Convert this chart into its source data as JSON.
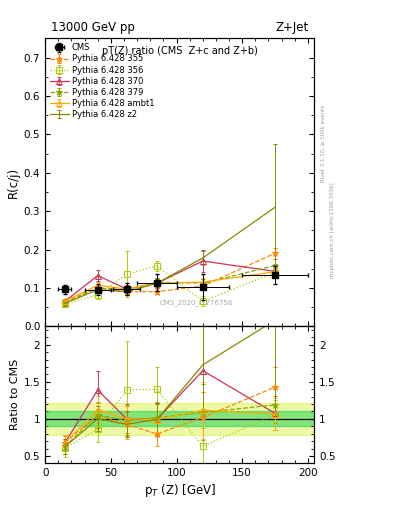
{
  "title_left": "13000 GeV pp",
  "title_right": "Z+Jet",
  "main_title": "pT(Z) ratio (CMS  Z+c and Z+b)",
  "ylabel_main": "R(c/j)",
  "ylabel_ratio": "Ratio to CMS",
  "xlabel": "p$_T$ (Z) [GeV]",
  "watermark": "CMS_2020_I1776758",
  "rivet_text": "Rivet 3.1.10, ≥ 100k events",
  "mcplots_text": "mcplots.cern.ch [arXiv:1306.3436]",
  "cms_x": [
    15,
    40,
    62,
    85,
    120,
    175
  ],
  "cms_y": [
    0.096,
    0.095,
    0.097,
    0.113,
    0.103,
    0.133
  ],
  "cms_yerr": [
    0.012,
    0.014,
    0.016,
    0.022,
    0.034,
    0.023
  ],
  "cms_xerr": [
    5,
    10,
    10,
    15,
    20,
    25
  ],
  "p355_x": [
    15,
    40,
    62,
    85,
    120,
    175
  ],
  "p355_y": [
    0.065,
    0.1,
    0.09,
    0.09,
    0.105,
    0.19
  ],
  "p355_yerr": [
    0.004,
    0.006,
    0.006,
    0.007,
    0.01,
    0.015
  ],
  "p355_color": "#ff8800",
  "p355_label": "Pythia 6.428 355",
  "p355_ls": "--",
  "p355_marker": "*",
  "p356_x": [
    15,
    40,
    62,
    85,
    120,
    175
  ],
  "p356_y": [
    0.058,
    0.082,
    0.135,
    0.158,
    0.065,
    0.14
  ],
  "p356_yerr": [
    0.008,
    0.012,
    0.06,
    0.013,
    0.013,
    0.012
  ],
  "p356_color": "#aacc00",
  "p356_label": "Pythia 6.428 356",
  "p356_ls": ":",
  "p356_marker": "s",
  "p370_x": [
    15,
    40,
    62,
    85,
    120,
    175
  ],
  "p370_y": [
    0.065,
    0.132,
    0.097,
    0.112,
    0.17,
    0.143
  ],
  "p370_yerr": [
    0.007,
    0.014,
    0.01,
    0.013,
    0.028,
    0.018
  ],
  "p370_color": "#cc3355",
  "p370_label": "Pythia 6.428 370",
  "p370_ls": "-",
  "p370_marker": "^",
  "p379_x": [
    15,
    40,
    62,
    85,
    120,
    175
  ],
  "p379_y": [
    0.06,
    0.1,
    0.095,
    0.115,
    0.112,
    0.158
  ],
  "p379_yerr": [
    0.006,
    0.008,
    0.01,
    0.01,
    0.012,
    0.018
  ],
  "p379_color": "#88aa00",
  "p379_label": "Pythia 6.428 379",
  "p379_ls": "--",
  "p379_marker": "*",
  "pambt_x": [
    15,
    40,
    62,
    85,
    120,
    175
  ],
  "pambt_y": [
    0.065,
    0.107,
    0.097,
    0.112,
    0.115,
    0.142
  ],
  "pambt_yerr": [
    0.005,
    0.008,
    0.008,
    0.01,
    0.012,
    0.016
  ],
  "pambt_color": "#ffaa00",
  "pambt_label": "Pythia 6.428 ambt1",
  "pambt_ls": "-",
  "pambt_marker": "^",
  "pz2_x": [
    15,
    40,
    62,
    85,
    120,
    175
  ],
  "pz2_y": [
    0.06,
    0.095,
    0.09,
    0.112,
    0.178,
    0.31
  ],
  "pz2_yerr": [
    0.006,
    0.008,
    0.008,
    0.01,
    0.018,
    0.165
  ],
  "pz2_color": "#888800",
  "pz2_label": "Pythia 6.428 z2",
  "pz2_ls": "-",
  "pz2_marker": "None",
  "ylim_main": [
    0.0,
    0.75
  ],
  "ylim_ratio": [
    0.4,
    2.25
  ],
  "xlim": [
    0,
    205
  ],
  "ratio_band_inner_color": "#00cc44",
  "ratio_band_outer_color": "#ccee00",
  "ratio_band_inner_alpha": 0.45,
  "ratio_band_outer_alpha": 0.35,
  "ratio_band_inner": 0.1,
  "ratio_band_outer": 0.22
}
